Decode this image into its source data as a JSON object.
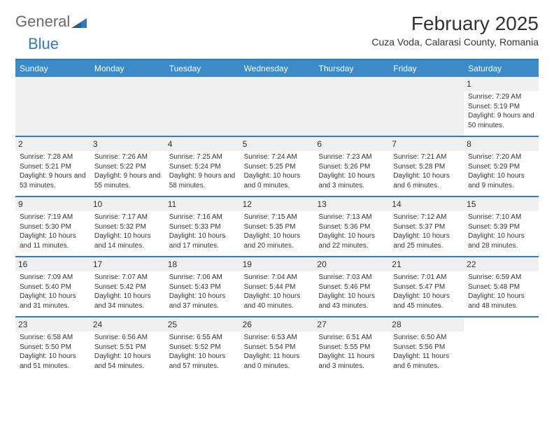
{
  "logo": {
    "text1": "General",
    "text2": "Blue"
  },
  "title": "February 2025",
  "subtitle": "Cuza Voda, Calarasi County, Romania",
  "colors": {
    "header_bg": "#3b8bc9",
    "border": "#2f7bbf",
    "alt_bg": "#efefef",
    "text": "#333333",
    "logo_gray": "#6a6a6a",
    "logo_blue": "#2f7bbf"
  },
  "weekdays": [
    "Sunday",
    "Monday",
    "Tuesday",
    "Wednesday",
    "Thursday",
    "Friday",
    "Saturday"
  ],
  "weeks": [
    [
      null,
      null,
      null,
      null,
      null,
      null,
      {
        "n": "1",
        "sr": "7:29 AM",
        "ss": "5:19 PM",
        "dl": "9 hours and 50 minutes."
      }
    ],
    [
      {
        "n": "2",
        "sr": "7:28 AM",
        "ss": "5:21 PM",
        "dl": "9 hours and 53 minutes."
      },
      {
        "n": "3",
        "sr": "7:26 AM",
        "ss": "5:22 PM",
        "dl": "9 hours and 55 minutes."
      },
      {
        "n": "4",
        "sr": "7:25 AM",
        "ss": "5:24 PM",
        "dl": "9 hours and 58 minutes."
      },
      {
        "n": "5",
        "sr": "7:24 AM",
        "ss": "5:25 PM",
        "dl": "10 hours and 0 minutes."
      },
      {
        "n": "6",
        "sr": "7:23 AM",
        "ss": "5:26 PM",
        "dl": "10 hours and 3 minutes."
      },
      {
        "n": "7",
        "sr": "7:21 AM",
        "ss": "5:28 PM",
        "dl": "10 hours and 6 minutes."
      },
      {
        "n": "8",
        "sr": "7:20 AM",
        "ss": "5:29 PM",
        "dl": "10 hours and 9 minutes."
      }
    ],
    [
      {
        "n": "9",
        "sr": "7:19 AM",
        "ss": "5:30 PM",
        "dl": "10 hours and 11 minutes."
      },
      {
        "n": "10",
        "sr": "7:17 AM",
        "ss": "5:32 PM",
        "dl": "10 hours and 14 minutes."
      },
      {
        "n": "11",
        "sr": "7:16 AM",
        "ss": "5:33 PM",
        "dl": "10 hours and 17 minutes."
      },
      {
        "n": "12",
        "sr": "7:15 AM",
        "ss": "5:35 PM",
        "dl": "10 hours and 20 minutes."
      },
      {
        "n": "13",
        "sr": "7:13 AM",
        "ss": "5:36 PM",
        "dl": "10 hours and 22 minutes."
      },
      {
        "n": "14",
        "sr": "7:12 AM",
        "ss": "5:37 PM",
        "dl": "10 hours and 25 minutes."
      },
      {
        "n": "15",
        "sr": "7:10 AM",
        "ss": "5:39 PM",
        "dl": "10 hours and 28 minutes."
      }
    ],
    [
      {
        "n": "16",
        "sr": "7:09 AM",
        "ss": "5:40 PM",
        "dl": "10 hours and 31 minutes."
      },
      {
        "n": "17",
        "sr": "7:07 AM",
        "ss": "5:42 PM",
        "dl": "10 hours and 34 minutes."
      },
      {
        "n": "18",
        "sr": "7:06 AM",
        "ss": "5:43 PM",
        "dl": "10 hours and 37 minutes."
      },
      {
        "n": "19",
        "sr": "7:04 AM",
        "ss": "5:44 PM",
        "dl": "10 hours and 40 minutes."
      },
      {
        "n": "20",
        "sr": "7:03 AM",
        "ss": "5:46 PM",
        "dl": "10 hours and 43 minutes."
      },
      {
        "n": "21",
        "sr": "7:01 AM",
        "ss": "5:47 PM",
        "dl": "10 hours and 45 minutes."
      },
      {
        "n": "22",
        "sr": "6:59 AM",
        "ss": "5:48 PM",
        "dl": "10 hours and 48 minutes."
      }
    ],
    [
      {
        "n": "23",
        "sr": "6:58 AM",
        "ss": "5:50 PM",
        "dl": "10 hours and 51 minutes."
      },
      {
        "n": "24",
        "sr": "6:56 AM",
        "ss": "5:51 PM",
        "dl": "10 hours and 54 minutes."
      },
      {
        "n": "25",
        "sr": "6:55 AM",
        "ss": "5:52 PM",
        "dl": "10 hours and 57 minutes."
      },
      {
        "n": "26",
        "sr": "6:53 AM",
        "ss": "5:54 PM",
        "dl": "11 hours and 0 minutes."
      },
      {
        "n": "27",
        "sr": "6:51 AM",
        "ss": "5:55 PM",
        "dl": "11 hours and 3 minutes."
      },
      {
        "n": "28",
        "sr": "6:50 AM",
        "ss": "5:56 PM",
        "dl": "11 hours and 6 minutes."
      },
      null
    ]
  ],
  "labels": {
    "sunrise": "Sunrise:",
    "sunset": "Sunset:",
    "daylight": "Daylight:"
  }
}
